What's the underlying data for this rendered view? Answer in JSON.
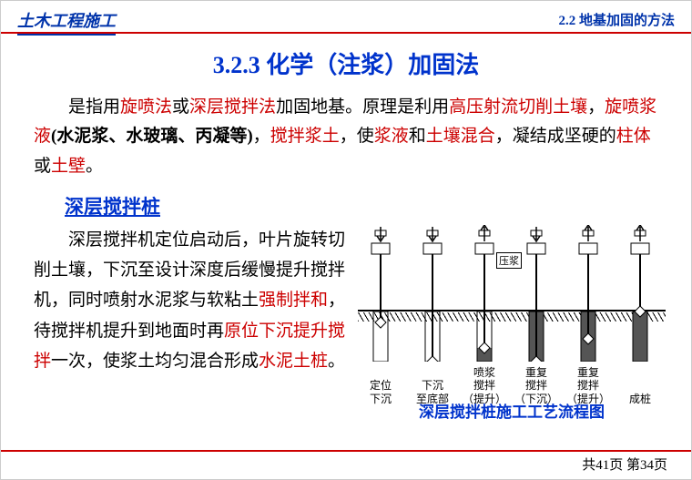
{
  "header": {
    "left": "土木工程施工",
    "right": "2.2 地基加固的方法"
  },
  "title": "3.2.3  化学（注浆）加固法",
  "para1_segments": [
    {
      "t": "是指用",
      "c": "#000"
    },
    {
      "t": "旋喷法",
      "c": "#cc0000"
    },
    {
      "t": "或",
      "c": "#000"
    },
    {
      "t": "深层搅拌法",
      "c": "#cc0000"
    },
    {
      "t": "加固地基。原理是利用",
      "c": "#000"
    },
    {
      "t": "高压射流切削土壤",
      "c": "#cc0000"
    },
    {
      "t": "，",
      "c": "#000"
    },
    {
      "t": "旋喷浆液",
      "c": "#cc0000"
    },
    {
      "t": "(水泥浆、水玻璃、丙凝等)",
      "c": "#000",
      "bold": true
    },
    {
      "t": "，",
      "c": "#000"
    },
    {
      "t": "搅拌浆土",
      "c": "#cc0000"
    },
    {
      "t": "，使",
      "c": "#000"
    },
    {
      "t": "浆液",
      "c": "#cc0000"
    },
    {
      "t": "和",
      "c": "#000"
    },
    {
      "t": "土壤混合",
      "c": "#cc0000"
    },
    {
      "t": "，凝结成坚硬的",
      "c": "#000"
    },
    {
      "t": "柱体",
      "c": "#cc0000"
    },
    {
      "t": "或",
      "c": "#000"
    },
    {
      "t": "土壁",
      "c": "#cc0000"
    },
    {
      "t": "。",
      "c": "#000"
    }
  ],
  "subhead": "深层搅拌桩",
  "para2_segments": [
    {
      "t": "深层搅拌机定位启动后，叶片旋转切削土壤，下沉至设计深度后缓慢提升搅拌机，同时喷射水泥浆与软粘土",
      "c": "#000"
    },
    {
      "t": "强制拌和",
      "c": "#cc0000"
    },
    {
      "t": "，待搅拌机提升到地面时再",
      "c": "#000"
    },
    {
      "t": "原位下沉提升搅拌",
      "c": "#cc0000"
    },
    {
      "t": "一次，使浆土均匀混合形成",
      "c": "#000"
    },
    {
      "t": "水泥土桩",
      "c": "#cc0000"
    },
    {
      "t": "。",
      "c": "#000"
    }
  ],
  "diagram": {
    "caption": "深层搅拌桩施工工艺流程图",
    "inject_label": "压浆",
    "stages": [
      {
        "label": "定位\n下沉",
        "depth": 12,
        "arrow": "down",
        "fill": false
      },
      {
        "label": "下沉\n至底部",
        "depth": 55,
        "arrow": "down",
        "fill": false
      },
      {
        "label": "喷浆\n搅拌\n（提升）",
        "depth": 40,
        "arrow": "up",
        "fill": true,
        "fillTop": 40
      },
      {
        "label": "重复\n搅拌\n（下沉）",
        "depth": 55,
        "arrow": "down",
        "fill": true,
        "fillTop": 0
      },
      {
        "label": "重复\n搅拌\n（提升）",
        "depth": 30,
        "arrow": "up",
        "fill": true,
        "fillTop": 0
      },
      {
        "label": "成桩",
        "depth": 0,
        "arrow": "up",
        "fill": true,
        "fillTop": 0
      }
    ]
  },
  "footer": {
    "total": 41,
    "current": 34,
    "template": "共{total}页 第{current}页"
  },
  "colors": {
    "blue": "#0033cc",
    "red": "#cc0000",
    "black": "#000000"
  }
}
